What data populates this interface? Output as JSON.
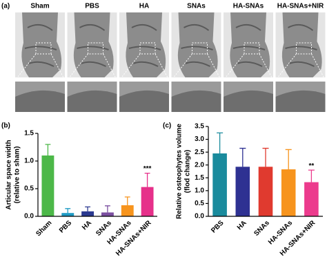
{
  "panel_a": {
    "label": "(a)",
    "columns": [
      "Sham",
      "PBS",
      "HA",
      "SNAs",
      "HA-SNAs",
      "HA-SNAs+NIR"
    ]
  },
  "chart_data": [
    {
      "type": "bar",
      "panel_label": "(b)",
      "ylabel": [
        "Articular space width",
        "(relative to sham)"
      ],
      "categories": [
        "Sham",
        "PBS",
        "HA",
        "SNAs",
        "HA-SNAs",
        "HA-SNAs+NIR"
      ],
      "values": [
        1.1,
        0.06,
        0.09,
        0.07,
        0.2,
        0.53
      ],
      "errors": [
        0.2,
        0.08,
        0.08,
        0.12,
        0.15,
        0.25
      ],
      "colors": [
        "#4cb848",
        "#1f9bc4",
        "#2b3990",
        "#7b4fa0",
        "#f7941d",
        "#e6308a"
      ],
      "significance": [
        null,
        null,
        null,
        null,
        null,
        "***"
      ],
      "ylim": [
        0,
        1.5
      ],
      "yticks": [
        {
          "value": 0,
          "label": "0.0"
        },
        {
          "value": 0.5,
          "label": "0.5"
        },
        {
          "value": 1,
          "label": "1.0"
        },
        {
          "value": 1.5,
          "label": "1.5"
        }
      ]
    },
    {
      "type": "bar",
      "panel_label": "(c)",
      "ylabel": [
        "Relative osteophytes volume",
        "(flod change)"
      ],
      "categories": [
        "PBS",
        "HA",
        "SNAs",
        "HA-SNAs",
        "HA-SNAs+NIR"
      ],
      "values": [
        2.45,
        1.93,
        1.93,
        1.83,
        1.33
      ],
      "errors": [
        0.8,
        0.72,
        0.72,
        0.77,
        0.47
      ],
      "colors": [
        "#1a8b9d",
        "#2e3192",
        "#e03a2f",
        "#f7941d",
        "#ec3b8d"
      ],
      "significance": [
        null,
        null,
        null,
        null,
        "**"
      ],
      "ylim": [
        0,
        3.5
      ],
      "yticks": [
        {
          "value": 0,
          "label": "0.0"
        },
        {
          "value": 0.5,
          "label": "0.5"
        },
        {
          "value": 1,
          "label": "1.0"
        },
        {
          "value": 1.5,
          "label": "1.5"
        },
        {
          "value": 2,
          "label": "2.0"
        },
        {
          "value": 2.5,
          "label": "2.5"
        },
        {
          "value": 3,
          "label": "3.0"
        },
        {
          "value": 3.5,
          "label": "3.5"
        }
      ]
    }
  ]
}
